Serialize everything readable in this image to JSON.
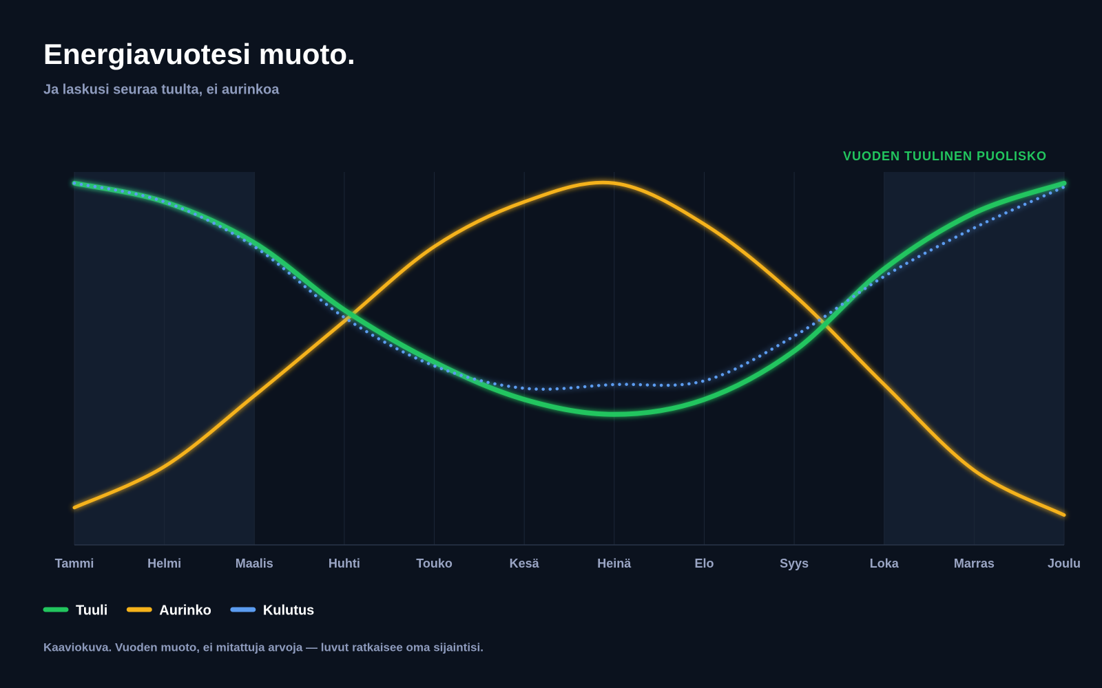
{
  "chart_data": {
    "type": "line",
    "title": "Energiavuotesi muoto.",
    "subtitle": "Ja laskusi seuraa tuulta, ei aurinkoa",
    "annotation": "VUODEN TUULINEN PUOLISKO",
    "note": "Kaaviokuva. Vuoden muoto, ei mitattuja arvoja — luvut ratkaisee oma sijaintisi.",
    "categories": [
      "Tammi",
      "Helmi",
      "Maalis",
      "Huhti",
      "Touko",
      "Kesä",
      "Heinä",
      "Elo",
      "Syys",
      "Loka",
      "Marras",
      "Joulu"
    ],
    "highlight_ranges": [
      [
        "Tammi",
        "Maalis"
      ],
      [
        "Loka",
        "Joulu"
      ]
    ],
    "ylim": [
      0,
      100
    ],
    "grid": true,
    "series": [
      {
        "name": "Tuuli",
        "color": "#22c55e",
        "style": "solid",
        "values": [
          97,
          92,
          81,
          63,
          49,
          39,
          35,
          39,
          52,
          74,
          89,
          97
        ]
      },
      {
        "name": "Aurinko",
        "color": "#f5b21b",
        "style": "solid",
        "values": [
          10,
          21,
          40,
          60,
          80,
          92,
          97,
          86,
          67,
          43,
          20,
          8
        ]
      },
      {
        "name": "Kulutus",
        "color": "#5b9cf0",
        "style": "dotted",
        "values": [
          97,
          92,
          80,
          61,
          48,
          42,
          43,
          44,
          56,
          72,
          85,
          96
        ]
      }
    ]
  }
}
